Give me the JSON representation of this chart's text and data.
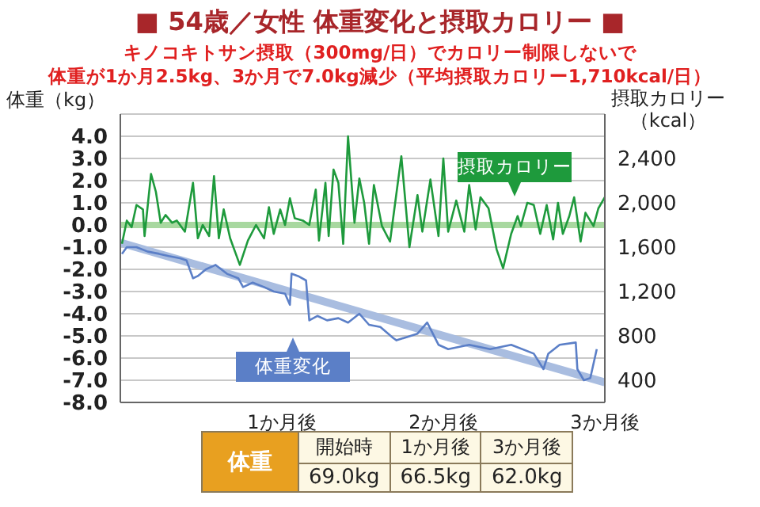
{
  "chart_data": {
    "type": "line",
    "title": "■  54歳／女性  体重変化と摂取カロリー  ■",
    "subtitle": "キノコキトサン摂取（300mg/日）でカロリー制限しないで",
    "ylabel": "体重（kg）",
    "y2label": "摂取カロリー（kcal）",
    "xlim": [
      0,
      3
    ],
    "xticks": [
      {
        "value": 1,
        "label": "1か月後"
      },
      {
        "value": 2,
        "label": "2か月後"
      },
      {
        "value": 3,
        "label": "3か月後"
      }
    ],
    "ylim": [
      -8,
      5
    ],
    "yticks": [
      {
        "value": 4,
        "label": "4.0"
      },
      {
        "value": 3,
        "label": "3.0"
      },
      {
        "value": 2,
        "label": "2.0"
      },
      {
        "value": 1,
        "label": "1.0"
      },
      {
        "value": 0,
        "label": "0.0"
      },
      {
        "value": -1,
        "label": "-1.0"
      },
      {
        "value": -2,
        "label": "-2.0"
      },
      {
        "value": -3,
        "label": "-3.0"
      },
      {
        "value": -4,
        "label": "-4.0"
      },
      {
        "value": -5,
        "label": "-5.0"
      },
      {
        "value": -6,
        "label": "-6.0"
      },
      {
        "value": -7,
        "label": "-7.0"
      },
      {
        "value": -8,
        "label": "-8.0"
      }
    ],
    "y2lim": [
      200,
      2800
    ],
    "y2ticks": [
      {
        "value": 400,
        "label": "400"
      },
      {
        "value": 800,
        "label": "800"
      },
      {
        "value": 1200,
        "label": "1,200"
      },
      {
        "value": 1600,
        "label": "1,600"
      },
      {
        "value": 2000,
        "label": "2,000"
      },
      {
        "value": 2400,
        "label": "2,400"
      }
    ],
    "grid": "y",
    "ref_lines": [
      {
        "axis": "y",
        "value": 0,
        "color": "#a8d8a0"
      }
    ],
    "series": [
      {
        "name": "体重変化",
        "color": "#5b7fc7",
        "x": [
          0.01,
          0.04,
          0.1,
          0.17,
          0.24,
          0.3,
          0.37,
          0.41,
          0.43,
          0.45,
          0.48,
          0.53,
          0.59,
          0.66,
          0.73,
          0.76,
          0.82,
          0.89,
          0.95,
          1.02,
          1.05,
          1.06,
          1.1,
          1.15,
          1.17,
          1.22,
          1.28,
          1.35,
          1.41,
          1.48,
          1.54,
          1.61,
          1.69,
          1.71,
          1.84,
          1.9,
          1.97,
          2.03,
          2.16,
          2.29,
          2.42,
          2.56,
          2.62,
          2.65,
          2.72,
          2.82,
          2.83,
          2.87,
          2.91,
          2.95
        ],
        "values": [
          -1.3,
          -1.0,
          -1.0,
          -1.2,
          -1.3,
          -1.4,
          -1.5,
          -1.6,
          -2.0,
          -2.4,
          -2.3,
          -2.0,
          -1.8,
          -2.2,
          -2.4,
          -2.8,
          -2.6,
          -2.8,
          -3.0,
          -3.1,
          -3.6,
          -2.2,
          -2.3,
          -2.5,
          -4.3,
          -4.1,
          -4.3,
          -4.2,
          -4.4,
          -4.0,
          -4.5,
          -4.6,
          -5.1,
          -5.2,
          -4.9,
          -4.4,
          -5.4,
          -5.6,
          -5.4,
          -5.6,
          -5.4,
          -5.8,
          -6.5,
          -5.8,
          -5.4,
          -5.3,
          -6.5,
          -7.0,
          -6.9,
          -5.6
        ]
      },
      {
        "type": "line",
        "color": "#a9bde0",
        "x": [
          0,
          3
        ],
        "values": [
          -0.8,
          -7.1
        ]
      },
      {
        "name": "摂取カロリー",
        "color": "#1e9a3c",
        "axis": "y2",
        "x": [
          0.01,
          0.04,
          0.07,
          0.1,
          0.14,
          0.15,
          0.19,
          0.22,
          0.25,
          0.28,
          0.32,
          0.35,
          0.4,
          0.45,
          0.48,
          0.51,
          0.55,
          0.58,
          0.61,
          0.64,
          0.68,
          0.71,
          0.74,
          0.79,
          0.84,
          0.89,
          0.92,
          0.95,
          0.99,
          1.02,
          1.05,
          1.08,
          1.13,
          1.17,
          1.21,
          1.23,
          1.27,
          1.29,
          1.32,
          1.35,
          1.38,
          1.41,
          1.45,
          1.48,
          1.51,
          1.54,
          1.57,
          1.62,
          1.67,
          1.74,
          1.79,
          1.84,
          1.87,
          1.92,
          1.97,
          2.0,
          2.03,
          2.08,
          2.13,
          2.16,
          2.2,
          2.23,
          2.28,
          2.33,
          2.37,
          2.42,
          2.46,
          2.48,
          2.52,
          2.56,
          2.6,
          2.64,
          2.68,
          2.71,
          2.74,
          2.78,
          2.81,
          2.85,
          2.88,
          2.93,
          2.96,
          3.0
        ],
        "values": [
          1630,
          1840,
          1780,
          1980,
          1940,
          1700,
          2260,
          2100,
          1820,
          1890,
          1820,
          1840,
          1740,
          2180,
          1680,
          1800,
          1700,
          2240,
          1680,
          1940,
          1680,
          1560,
          1440,
          1660,
          1800,
          1680,
          1960,
          1720,
          1940,
          1800,
          2040,
          1860,
          1840,
          1800,
          2120,
          1660,
          2180,
          1700,
          2300,
          2180,
          1630,
          2600,
          1820,
          2220,
          2000,
          1630,
          2160,
          1790,
          1650,
          2420,
          1600,
          2070,
          1740,
          2210,
          1700,
          2400,
          1740,
          2020,
          1740,
          2160,
          1760,
          2050,
          1950,
          1580,
          1410,
          1720,
          1880,
          1790,
          2000,
          1980,
          1720,
          1980,
          1670,
          2000,
          1720,
          1880,
          2050,
          1650,
          1910,
          1790,
          1950,
          2050
        ]
      }
    ],
    "annotations": [
      "体重が1か月2.5kg、3か月で7.0kg減少（平均摂取カロリー1,710kcal/日）",
      "体重",
      "開始時",
      "1か月後",
      "3か月後",
      "69.0kg",
      "66.5kg",
      "62.0kg"
    ]
  }
}
